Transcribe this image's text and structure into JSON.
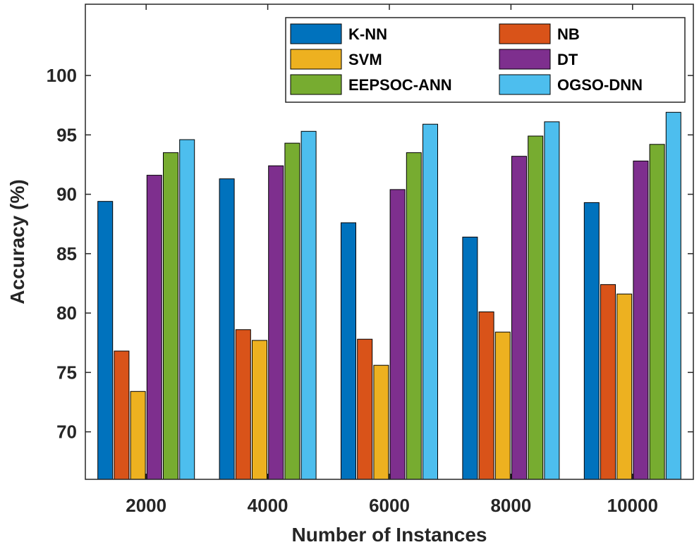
{
  "chart_data": {
    "type": "bar",
    "title": "",
    "xlabel": "Number of Instances",
    "ylabel": "Accuracy (%)",
    "categories": [
      "2000",
      "4000",
      "6000",
      "8000",
      "10000"
    ],
    "ylim": [
      66,
      106
    ],
    "yticks": [
      70,
      75,
      80,
      85,
      90,
      95,
      100
    ],
    "grid": false,
    "legend_position": "top-right",
    "series": [
      {
        "name": "K-NN",
        "color": "#0072BD",
        "values": [
          89.4,
          91.3,
          87.6,
          86.4,
          89.3
        ]
      },
      {
        "name": "NB",
        "color": "#D95319",
        "values": [
          76.8,
          78.6,
          77.8,
          80.1,
          82.4
        ]
      },
      {
        "name": "SVM",
        "color": "#EDB120",
        "values": [
          73.4,
          77.7,
          75.6,
          78.4,
          81.6
        ]
      },
      {
        "name": "DT",
        "color": "#7E2F8E",
        "values": [
          91.6,
          92.4,
          90.4,
          93.2,
          92.8
        ]
      },
      {
        "name": "EEPSOC-ANN",
        "color": "#77AC30",
        "values": [
          93.5,
          94.3,
          93.5,
          94.9,
          94.2
        ]
      },
      {
        "name": "OGSO-DNN",
        "color": "#4DBEEE",
        "values": [
          94.6,
          95.3,
          95.9,
          96.1,
          96.9
        ]
      }
    ]
  }
}
